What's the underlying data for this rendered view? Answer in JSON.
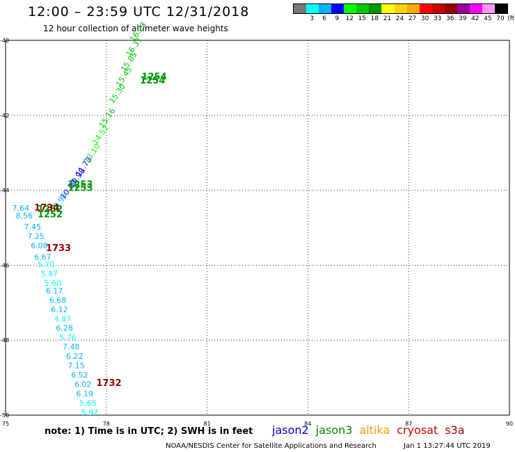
{
  "header": {
    "title": "12:00  –  23:59  UTC  12/31/2018",
    "subtitle": "12 hour collection of altimeter wave heights"
  },
  "legend": {
    "unit": "(ft)",
    "bins": [
      {
        "label": "",
        "color": "#777777"
      },
      {
        "label": "3",
        "color": "#00ffff"
      },
      {
        "label": "6",
        "color": "#00b4ff"
      },
      {
        "label": "9",
        "color": "#0000ff"
      },
      {
        "label": "12",
        "color": "#00ff00"
      },
      {
        "label": "15",
        "color": "#00c800"
      },
      {
        "label": "18",
        "color": "#009600"
      },
      {
        "label": "21",
        "color": "#ffff00"
      },
      {
        "label": "24",
        "color": "#ffd200"
      },
      {
        "label": "27",
        "color": "#ffaa00"
      },
      {
        "label": "30",
        "color": "#ff0000"
      },
      {
        "label": "33",
        "color": "#c80000"
      },
      {
        "label": "36",
        "color": "#960000"
      },
      {
        "label": "39",
        "color": "#960096"
      },
      {
        "label": "42",
        "color": "#ff00ff"
      },
      {
        "label": "45",
        "color": "#ff96ff"
      },
      {
        "label": "70",
        "color": "#000000"
      }
    ]
  },
  "map": {
    "lon_min": 75,
    "lon_max": 90,
    "lat_min": -50,
    "lat_max": -40,
    "lon_ticks": [
      "75",
      "78",
      "81",
      "84",
      "87",
      "90"
    ],
    "lat_ticks": [
      "-40",
      "-42",
      "-44",
      "-46",
      "-48",
      "-50"
    ],
    "tracks": [
      {
        "satellite": "jason3",
        "points": [
          {
            "lon": 78.82,
            "lat": -40.05,
            "value": "16.23",
            "color": "#00c800"
          },
          {
            "lon": 78.7,
            "lat": -40.45,
            "value": "16.31",
            "color": "#00c800"
          },
          {
            "lon": 78.55,
            "lat": -40.85,
            "value": "15.85",
            "color": "#00c800"
          },
          {
            "lon": 78.4,
            "lat": -41.25,
            "value": "15.45",
            "color": "#00c800"
          },
          {
            "lon": 78.2,
            "lat": -41.7,
            "value": "15.30",
            "color": "#00c800"
          },
          {
            "lon": 77.9,
            "lat": -42.35,
            "value": "15.16",
            "color": "#00c800"
          },
          {
            "lon": 77.7,
            "lat": -42.8,
            "value": "14.52",
            "color": "#00ff00"
          },
          {
            "lon": 77.45,
            "lat": -43.3,
            "value": "13.10",
            "color": "#00ff00"
          },
          {
            "lon": 77.2,
            "lat": -43.65,
            "value": "11.73",
            "color": "#0000ff"
          },
          {
            "lon": 77.0,
            "lat": -43.95,
            "value": "10.98",
            "color": "#0000ff"
          },
          {
            "lon": 76.75,
            "lat": -44.25,
            "value": "10.10",
            "color": "#0000ff"
          },
          {
            "lon": 76.55,
            "lat": -44.5,
            "value": "8.96",
            "color": "#00b4ff"
          }
        ]
      },
      {
        "satellite": "jason2",
        "points": [
          {
            "lon": 75.2,
            "lat": -44.55,
            "value": "7.64",
            "color": "#00b4ff"
          },
          {
            "lon": 75.3,
            "lat": -44.75,
            "value": "8.56",
            "color": "#00b4ff"
          },
          {
            "lon": 75.55,
            "lat": -45.05,
            "value": "7.45",
            "color": "#00b4ff"
          },
          {
            "lon": 75.65,
            "lat": -45.3,
            "value": "7.25",
            "color": "#00b4ff"
          },
          {
            "lon": 75.75,
            "lat": -45.55,
            "value": "6.08",
            "color": "#00b4ff"
          },
          {
            "lon": 75.85,
            "lat": -45.85,
            "value": "6.67",
            "color": "#00b4ff"
          },
          {
            "lon": 75.95,
            "lat": -46.05,
            "value": "5.70",
            "color": "#00ffff"
          },
          {
            "lon": 76.05,
            "lat": -46.3,
            "value": "5.87",
            "color": "#00ffff"
          },
          {
            "lon": 76.15,
            "lat": -46.55,
            "value": "5.60",
            "color": "#00ffff"
          },
          {
            "lon": 76.2,
            "lat": -46.75,
            "value": "6.17",
            "color": "#00b4ff"
          },
          {
            "lon": 76.3,
            "lat": -47.0,
            "value": "6.68",
            "color": "#00b4ff"
          },
          {
            "lon": 76.35,
            "lat": -47.25,
            "value": "6.12",
            "color": "#00b4ff"
          },
          {
            "lon": 76.45,
            "lat": -47.5,
            "value": "4.87",
            "color": "#00ffff"
          },
          {
            "lon": 76.5,
            "lat": -47.75,
            "value": "6.28",
            "color": "#00b4ff"
          },
          {
            "lon": 76.6,
            "lat": -48.0,
            "value": "5.76",
            "color": "#00ffff"
          },
          {
            "lon": 76.7,
            "lat": -48.25,
            "value": "7.48",
            "color": "#00b4ff"
          },
          {
            "lon": 76.8,
            "lat": -48.5,
            "value": "6.22",
            "color": "#00b4ff"
          },
          {
            "lon": 76.85,
            "lat": -48.75,
            "value": "7.15",
            "color": "#00b4ff"
          },
          {
            "lon": 76.95,
            "lat": -49.0,
            "value": "6.52",
            "color": "#00b4ff"
          },
          {
            "lon": 77.05,
            "lat": -49.25,
            "value": "6.02",
            "color": "#00b4ff"
          },
          {
            "lon": 77.1,
            "lat": -49.5,
            "value": "6.19",
            "color": "#00b4ff"
          },
          {
            "lon": 77.2,
            "lat": -49.75,
            "value": "5.65",
            "color": "#00ffff"
          },
          {
            "lon": 77.25,
            "lat": -50.0,
            "value": "5.97",
            "color": "#00ffff"
          }
        ]
      }
    ],
    "time_labels": [
      {
        "lon": 79.05,
        "lat": -41.05,
        "value": "1254",
        "color": "#009600",
        "size": 13
      },
      {
        "lon": 79.0,
        "lat": -41.15,
        "value": "1254",
        "color": "#009600",
        "size": 13
      },
      {
        "lon": 76.85,
        "lat": -43.92,
        "value": "1253",
        "color": "#009600",
        "size": 13
      },
      {
        "lon": 76.85,
        "lat": -44.02,
        "value": "1253",
        "color": "#009600",
        "size": 13
      },
      {
        "lon": 75.95,
        "lat": -44.58,
        "value": "1252",
        "color": "#009600",
        "size": 13
      },
      {
        "lon": 75.95,
        "lat": -44.72,
        "value": "1252",
        "color": "#009600",
        "size": 13
      },
      {
        "lon": 75.85,
        "lat": -44.55,
        "value": "1734",
        "color": "#960000",
        "size": 13
      },
      {
        "lon": 76.2,
        "lat": -45.62,
        "value": "1733",
        "color": "#960000",
        "size": 13
      },
      {
        "lon": 77.7,
        "lat": -49.22,
        "value": "1732",
        "color": "#960000",
        "size": 13
      }
    ],
    "coastline_hint": "open ocean"
  },
  "footer": {
    "note": "note:  1) Time is in UTC;  2) SWH is in feet",
    "satellites": [
      {
        "name": "jason2",
        "color": "#0000cc"
      },
      {
        "name": "jason3",
        "color": "#008800"
      },
      {
        "name": "altika",
        "color": "#ff9900"
      },
      {
        "name": "cryosat",
        "color": "#cc0000"
      },
      {
        "name": "s3a",
        "color": "#990000"
      }
    ],
    "credit": "NOAA/NESDIS Center for Satellite Applications and Research",
    "timestamp": "Jan  1 13:27:44 UTC 2019"
  }
}
